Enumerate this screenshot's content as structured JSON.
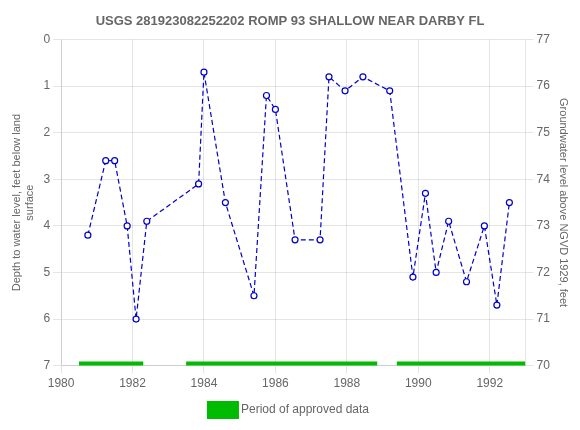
{
  "chart_data": {
    "type": "line",
    "title": "USGS 281923082252202 ROMP 93 SHALLOW NEAR DARBY FL",
    "ylabel": "Depth to water level, feet below land\nsurface",
    "y2label": "Groundwater level above NGVD 1929, feet",
    "xlim": [
      1980,
      1993
    ],
    "xticks": [
      1980,
      1982,
      1984,
      1986,
      1988,
      1990,
      1992
    ],
    "ylim": [
      7.0,
      0.0
    ],
    "yticks": [
      0.0,
      1.0,
      2.0,
      3.0,
      4.0,
      5.0,
      6.0,
      7.0
    ],
    "y2lim": [
      70.0,
      77.0
    ],
    "y2ticks": [
      70.0,
      71.0,
      72.0,
      73.0,
      74.0,
      75.0,
      76.0,
      77.0
    ],
    "grid": true,
    "legend": "bottom",
    "x": [
      1980.75,
      1981.25,
      1981.5,
      1981.85,
      1982.1,
      1982.4,
      1983.85,
      1984.0,
      1984.6,
      1985.4,
      1985.75,
      1986.0,
      1986.55,
      1987.25,
      1987.5,
      1987.95,
      1988.45,
      1989.2,
      1989.85,
      1990.2,
      1990.5,
      1990.85,
      1991.35,
      1991.85,
      1992.2,
      1992.55
    ],
    "series": [
      {
        "type": "line",
        "color": "#0000CC",
        "marker": "circle",
        "line_style": "dashed",
        "values": [
          4.2,
          2.6,
          2.6,
          4.0,
          6.0,
          3.9,
          3.1,
          0.7,
          3.5,
          5.5,
          1.2,
          1.5,
          4.3,
          4.3,
          0.8,
          1.1,
          0.8,
          1.1,
          5.1,
          3.3,
          5.0,
          3.9,
          5.2,
          4.0,
          5.7,
          3.5
        ]
      },
      {
        "type": "bar",
        "orientation": "horizontal",
        "name": "Period of approved data",
        "color": "#00BB00",
        "y": 7.0,
        "x_ranges": [
          [
            1980.5,
            1982.3
          ],
          [
            1983.5,
            1988.85
          ],
          [
            1989.4,
            1993.0
          ]
        ]
      }
    ]
  }
}
